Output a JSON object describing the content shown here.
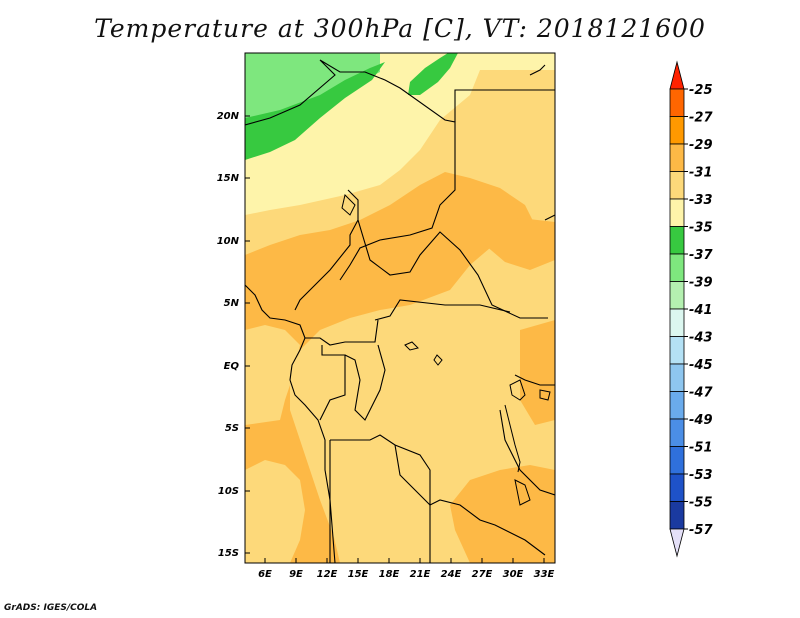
{
  "title": "Temperature at 300hPa [C], VT: 2018121600",
  "footer": "GrADS: IGES/COLA",
  "map": {
    "lon_range": [
      4,
      34
    ],
    "lat_range": [
      -16,
      25
    ],
    "lat_ticks": [
      "20N",
      "15N",
      "10N",
      "5N",
      "EQ",
      "5S",
      "10S",
      "15S"
    ],
    "lon_ticks": [
      "6E",
      "9E",
      "12E",
      "15E",
      "18E",
      "21E",
      "24E",
      "27E",
      "30E",
      "33E"
    ]
  },
  "colorbar": {
    "labels": [
      "-25",
      "-27",
      "-29",
      "-31",
      "-33",
      "-35",
      "-37",
      "-39",
      "-41",
      "-43",
      "-45",
      "-47",
      "-49",
      "-51",
      "-53",
      "-55",
      "-57"
    ],
    "colors": [
      "#ff6600",
      "#ff9900",
      "#fdb946",
      "#fdd97a",
      "#fef4aa",
      "#37c940",
      "#7ee77e",
      "#b4f0b0",
      "#dcf7f0",
      "#b4e1f5",
      "#8ec6ef",
      "#6aabec",
      "#4b8ee6",
      "#2f70dc",
      "#1e52c8",
      "#1a3aa0"
    ],
    "top_arrow_color": "#ff2200",
    "bottom_arrow_color": "#e4e0f8"
  },
  "field_colors": {
    "warm": "#fdb946",
    "mid": "#fdd97a",
    "cool": "#fef4aa",
    "green1": "#7ee77e",
    "green2": "#37c940",
    "ocean_bg": "#fdd97a"
  }
}
